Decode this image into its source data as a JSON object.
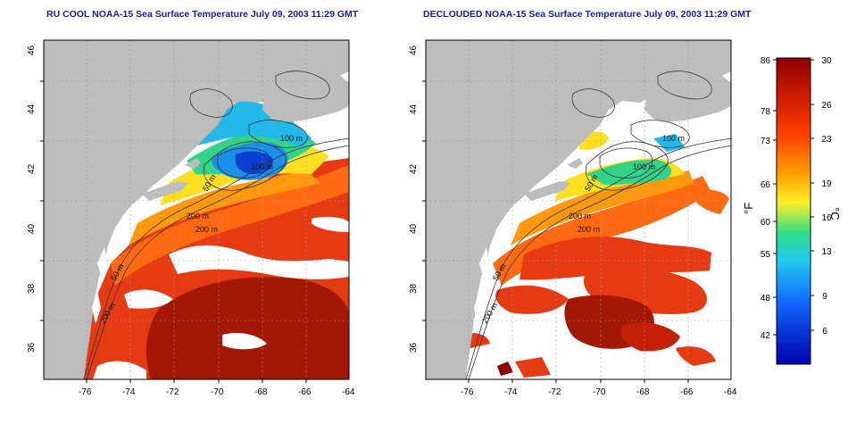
{
  "panels": [
    {
      "title": "RU COOL NOAA-15 Sea Surface Temperature July 09, 2003 11:29 GMT",
      "contour_labels": [
        "100 m",
        "100 m",
        "50 m",
        "200 m",
        "200 m",
        "50 m",
        "200 m"
      ]
    },
    {
      "title": "DECLOUDED NOAA-15 Sea Surface Temperature July 09, 2003 11:29 GMT",
      "contour_labels": [
        "100 m",
        "100 m",
        "50 m",
        "200 m",
        "200 m",
        "50 m",
        "200 m"
      ]
    }
  ],
  "map_axes": {
    "lon_ticks": [
      "-76",
      "-74",
      "-72",
      "-70",
      "-68",
      "-66",
      "-64"
    ],
    "lat_ticks": [
      "36",
      "38",
      "40",
      "42",
      "44",
      "46"
    ]
  },
  "colorbar": {
    "f_label": "°F",
    "c_label": "°C",
    "f_ticks": [
      "86",
      "78",
      "73",
      "66",
      "60",
      "55",
      "48",
      "42"
    ],
    "c_ticks": [
      "30",
      "26",
      "23",
      "19",
      "16",
      "13",
      "9",
      "6"
    ],
    "colors": [
      "#8b0000",
      "#cc1a00",
      "#ff4000",
      "#ff9900",
      "#ffee22",
      "#33dd88",
      "#22ccee",
      "#1166ff",
      "#0000aa"
    ]
  },
  "colors": {
    "land": "#bdbdbd",
    "title": "#1a1a9c"
  }
}
